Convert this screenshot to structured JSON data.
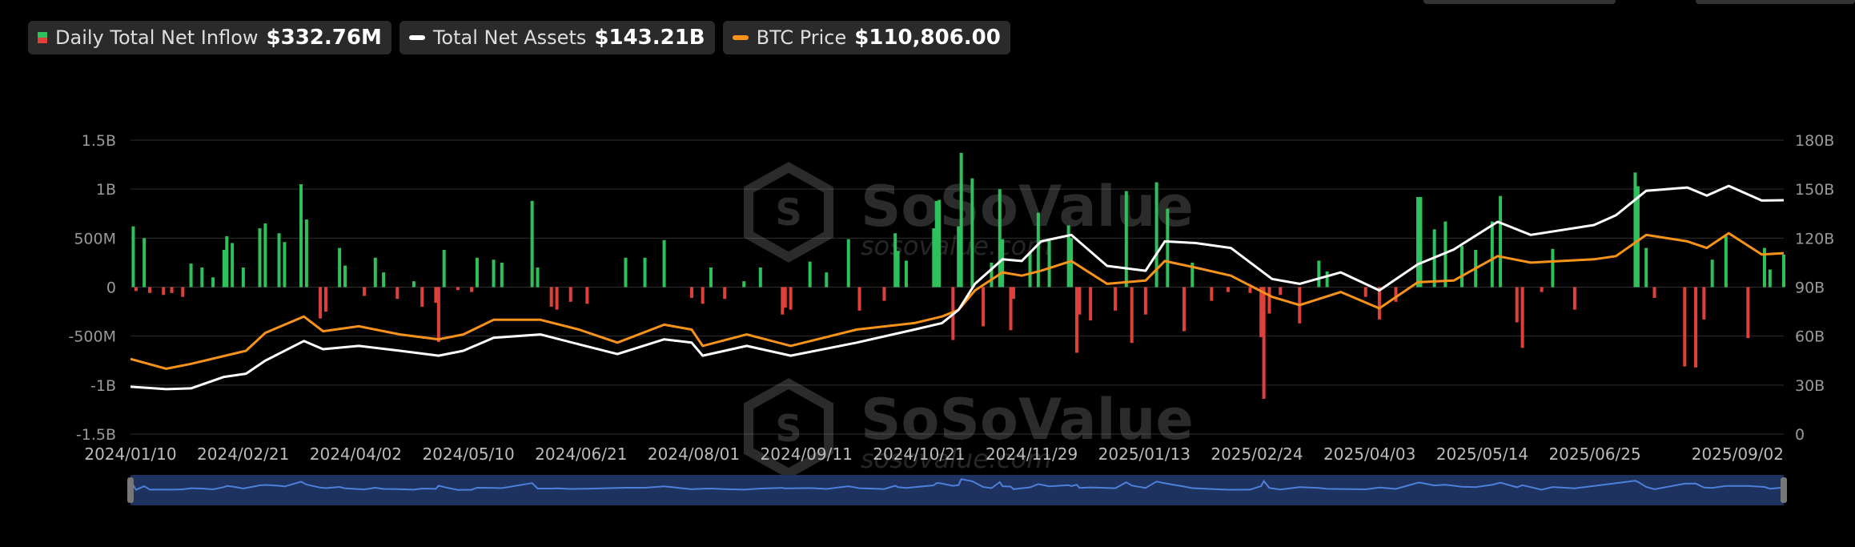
{
  "legend": {
    "inflow": {
      "label": "Daily Total Net Inflow",
      "value": "$332.76M",
      "colors": [
        "#2ec05a",
        "#e0403a"
      ]
    },
    "assets": {
      "label": "Total Net Assets",
      "value": "$143.21B",
      "color": "#ffffff"
    },
    "btc": {
      "label": "BTC Price",
      "value": "$110,806.00",
      "color": "#f7931a"
    }
  },
  "watermark": {
    "brand": "SoSoValue",
    "url": "sosovalue.com"
  },
  "chart_data": {
    "type": "bar+line",
    "x_ticks": [
      "2024/01/10",
      "2024/02/21",
      "2024/04/02",
      "2024/05/10",
      "2024/06/21",
      "2024/08/01",
      "2024/09/11",
      "2024/10/21",
      "2024/11/29",
      "2025/01/13",
      "2025/02/24",
      "2025/04/03",
      "2025/05/14",
      "2025/06/25",
      "2025/09/02"
    ],
    "x_range": [
      "2024-01-10",
      "2025-09-02"
    ],
    "left_axis": {
      "ticks": [
        "1.5B",
        "1B",
        "500M",
        "0",
        "-500M",
        "-1B",
        "-1.5B"
      ],
      "range": [
        -1500,
        1500
      ],
      "unit": "USD millions"
    },
    "right_axis": {
      "ticks": [
        "180B",
        "150B",
        "120B",
        "90B",
        "60B",
        "30B",
        "0"
      ],
      "range": [
        0,
        180
      ],
      "unit": "USD billions"
    },
    "grid": true,
    "series": [
      {
        "name": "Daily Total Net Inflow",
        "type": "bar",
        "axis": "left",
        "unit": "USD millions",
        "points": [
          [
            "2024-01-11",
            620
          ],
          [
            "2024-01-12",
            -40
          ],
          [
            "2024-01-15",
            500
          ],
          [
            "2024-01-17",
            -60
          ],
          [
            "2024-01-22",
            -80
          ],
          [
            "2024-01-25",
            -60
          ],
          [
            "2024-01-29",
            -100
          ],
          [
            "2024-02-01",
            240
          ],
          [
            "2024-02-05",
            200
          ],
          [
            "2024-02-09",
            100
          ],
          [
            "2024-02-13",
            380
          ],
          [
            "2024-02-14",
            520
          ],
          [
            "2024-02-16",
            450
          ],
          [
            "2024-02-20",
            200
          ],
          [
            "2024-02-26",
            600
          ],
          [
            "2024-02-28",
            650
          ],
          [
            "2024-03-04",
            550
          ],
          [
            "2024-03-06",
            460
          ],
          [
            "2024-03-12",
            1050
          ],
          [
            "2024-03-14",
            690
          ],
          [
            "2024-03-19",
            -320
          ],
          [
            "2024-03-21",
            -250
          ],
          [
            "2024-03-26",
            400
          ],
          [
            "2024-03-28",
            220
          ],
          [
            "2024-04-04",
            -90
          ],
          [
            "2024-04-08",
            300
          ],
          [
            "2024-04-11",
            150
          ],
          [
            "2024-04-16",
            -120
          ],
          [
            "2024-04-22",
            60
          ],
          [
            "2024-04-25",
            -200
          ],
          [
            "2024-04-30",
            -160
          ],
          [
            "2024-05-01",
            -560
          ],
          [
            "2024-05-03",
            380
          ],
          [
            "2024-05-08",
            -30
          ],
          [
            "2024-05-13",
            -50
          ],
          [
            "2024-05-15",
            300
          ],
          [
            "2024-05-21",
            280
          ],
          [
            "2024-05-24",
            250
          ],
          [
            "2024-06-04",
            880
          ],
          [
            "2024-06-06",
            200
          ],
          [
            "2024-06-11",
            -200
          ],
          [
            "2024-06-13",
            -230
          ],
          [
            "2024-06-18",
            -150
          ],
          [
            "2024-06-24",
            -170
          ],
          [
            "2024-07-08",
            300
          ],
          [
            "2024-07-15",
            300
          ],
          [
            "2024-07-22",
            480
          ],
          [
            "2024-08-01",
            -110
          ],
          [
            "2024-08-05",
            -170
          ],
          [
            "2024-08-08",
            200
          ],
          [
            "2024-08-13",
            -120
          ],
          [
            "2024-08-20",
            60
          ],
          [
            "2024-08-26",
            200
          ],
          [
            "2024-09-03",
            -280
          ],
          [
            "2024-09-04",
            -210
          ],
          [
            "2024-09-06",
            -230
          ],
          [
            "2024-09-13",
            260
          ],
          [
            "2024-09-19",
            150
          ],
          [
            "2024-09-27",
            490
          ],
          [
            "2024-10-01",
            -240
          ],
          [
            "2024-10-10",
            -140
          ],
          [
            "2024-10-14",
            550
          ],
          [
            "2024-10-15",
            370
          ],
          [
            "2024-10-18",
            270
          ],
          [
            "2024-10-28",
            600
          ],
          [
            "2024-10-29",
            880
          ],
          [
            "2024-10-30",
            890
          ],
          [
            "2024-11-04",
            -540
          ],
          [
            "2024-11-06",
            620
          ],
          [
            "2024-11-07",
            1370
          ],
          [
            "2024-11-11",
            1110
          ],
          [
            "2024-11-15",
            -400
          ],
          [
            "2024-11-18",
            250
          ],
          [
            "2024-11-21",
            1000
          ],
          [
            "2024-11-22",
            490
          ],
          [
            "2024-11-25",
            -440
          ],
          [
            "2024-11-26",
            -120
          ],
          [
            "2024-12-02",
            350
          ],
          [
            "2024-12-05",
            760
          ],
          [
            "2024-12-09",
            480
          ],
          [
            "2024-12-16",
            630
          ],
          [
            "2024-12-17",
            500
          ],
          [
            "2024-12-19",
            -670
          ],
          [
            "2024-12-20",
            -280
          ],
          [
            "2024-12-24",
            -340
          ],
          [
            "2025-01-02",
            -240
          ],
          [
            "2025-01-06",
            980
          ],
          [
            "2025-01-08",
            -570
          ],
          [
            "2025-01-13",
            -280
          ],
          [
            "2025-01-17",
            1070
          ],
          [
            "2025-01-21",
            800
          ],
          [
            "2025-01-27",
            -450
          ],
          [
            "2025-01-30",
            250
          ],
          [
            "2025-02-06",
            -140
          ],
          [
            "2025-02-12",
            -50
          ],
          [
            "2025-02-20",
            -60
          ],
          [
            "2025-02-24",
            -510
          ],
          [
            "2025-02-25",
            -1140
          ],
          [
            "2025-02-27",
            -270
          ],
          [
            "2025-03-03",
            -80
          ],
          [
            "2025-03-10",
            -370
          ],
          [
            "2025-03-17",
            270
          ],
          [
            "2025-03-20",
            160
          ],
          [
            "2025-04-03",
            -100
          ],
          [
            "2025-04-08",
            -330
          ],
          [
            "2025-04-14",
            -150
          ],
          [
            "2025-04-22",
            920
          ],
          [
            "2025-04-23",
            920
          ],
          [
            "2025-04-28",
            590
          ],
          [
            "2025-05-02",
            670
          ],
          [
            "2025-05-08",
            420
          ],
          [
            "2025-05-13",
            380
          ],
          [
            "2025-05-19",
            670
          ],
          [
            "2025-05-22",
            930
          ],
          [
            "2025-05-28",
            -360
          ],
          [
            "2025-05-30",
            -620
          ],
          [
            "2025-06-06",
            -50
          ],
          [
            "2025-06-10",
            390
          ],
          [
            "2025-06-18",
            -230
          ],
          [
            "2025-07-10",
            1170
          ],
          [
            "2025-07-11",
            1030
          ],
          [
            "2025-07-14",
            400
          ],
          [
            "2025-07-17",
            -110
          ],
          [
            "2025-07-28",
            -810
          ],
          [
            "2025-08-01",
            -820
          ],
          [
            "2025-08-04",
            -330
          ],
          [
            "2025-08-07",
            280
          ],
          [
            "2025-08-12",
            520
          ],
          [
            "2025-08-20",
            -520
          ],
          [
            "2025-08-26",
            400
          ],
          [
            "2025-08-28",
            180
          ],
          [
            "2025-09-02",
            333
          ]
        ]
      },
      {
        "name": "Total Net Assets",
        "type": "line",
        "axis": "right",
        "unit": "USD billions",
        "points": [
          [
            "2024-01-10",
            29
          ],
          [
            "2024-01-23",
            27.5
          ],
          [
            "2024-02-01",
            28
          ],
          [
            "2024-02-13",
            35
          ],
          [
            "2024-02-21",
            37
          ],
          [
            "2024-02-28",
            45
          ],
          [
            "2024-03-13",
            57
          ],
          [
            "2024-03-20",
            52
          ],
          [
            "2024-04-02",
            54
          ],
          [
            "2024-04-17",
            51
          ],
          [
            "2024-05-01",
            48
          ],
          [
            "2024-05-10",
            51
          ],
          [
            "2024-05-21",
            59
          ],
          [
            "2024-06-07",
            61
          ],
          [
            "2024-06-21",
            55
          ],
          [
            "2024-07-05",
            49
          ],
          [
            "2024-07-22",
            58
          ],
          [
            "2024-08-01",
            56
          ],
          [
            "2024-08-05",
            48
          ],
          [
            "2024-08-21",
            54
          ],
          [
            "2024-09-06",
            48
          ],
          [
            "2024-09-30",
            56
          ],
          [
            "2024-10-21",
            64
          ],
          [
            "2024-10-31",
            68
          ],
          [
            "2024-11-06",
            76
          ],
          [
            "2024-11-12",
            92
          ],
          [
            "2024-11-22",
            107
          ],
          [
            "2024-11-29",
            106
          ],
          [
            "2024-12-06",
            118
          ],
          [
            "2024-12-17",
            122
          ],
          [
            "2024-12-30",
            103
          ],
          [
            "2025-01-13",
            100
          ],
          [
            "2025-01-20",
            118
          ],
          [
            "2025-01-31",
            117
          ],
          [
            "2025-02-13",
            114
          ],
          [
            "2025-02-28",
            95
          ],
          [
            "2025-03-10",
            92
          ],
          [
            "2025-03-25",
            99
          ],
          [
            "2025-04-08",
            88
          ],
          [
            "2025-04-22",
            104
          ],
          [
            "2025-05-05",
            113
          ],
          [
            "2025-05-21",
            130
          ],
          [
            "2025-06-02",
            122
          ],
          [
            "2025-06-25",
            128
          ],
          [
            "2025-07-03",
            134
          ],
          [
            "2025-07-14",
            149
          ],
          [
            "2025-07-29",
            151
          ],
          [
            "2025-08-05",
            146
          ],
          [
            "2025-08-13",
            152
          ],
          [
            "2025-08-25",
            143
          ],
          [
            "2025-09-02",
            143.21
          ]
        ]
      },
      {
        "name": "BTC Price",
        "type": "line",
        "axis": "right",
        "unit": "USD thousands",
        "points": [
          [
            "2024-01-10",
            46
          ],
          [
            "2024-01-23",
            40
          ],
          [
            "2024-02-01",
            43
          ],
          [
            "2024-02-21",
            51
          ],
          [
            "2024-02-28",
            62
          ],
          [
            "2024-03-13",
            72
          ],
          [
            "2024-03-20",
            63
          ],
          [
            "2024-04-02",
            66
          ],
          [
            "2024-04-17",
            61
          ],
          [
            "2024-05-01",
            58
          ],
          [
            "2024-05-10",
            61
          ],
          [
            "2024-05-21",
            70
          ],
          [
            "2024-06-07",
            70
          ],
          [
            "2024-06-21",
            64
          ],
          [
            "2024-07-05",
            56
          ],
          [
            "2024-07-22",
            67
          ],
          [
            "2024-08-01",
            64
          ],
          [
            "2024-08-05",
            54
          ],
          [
            "2024-08-21",
            61
          ],
          [
            "2024-09-06",
            54
          ],
          [
            "2024-09-30",
            64
          ],
          [
            "2024-10-21",
            68
          ],
          [
            "2024-10-31",
            72
          ],
          [
            "2024-11-06",
            76
          ],
          [
            "2024-11-12",
            88
          ],
          [
            "2024-11-22",
            99
          ],
          [
            "2024-11-29",
            97
          ],
          [
            "2024-12-06",
            100
          ],
          [
            "2024-12-17",
            106
          ],
          [
            "2024-12-30",
            92
          ],
          [
            "2025-01-13",
            94
          ],
          [
            "2025-01-20",
            106
          ],
          [
            "2025-01-31",
            102
          ],
          [
            "2025-02-13",
            97
          ],
          [
            "2025-02-28",
            84
          ],
          [
            "2025-03-10",
            79
          ],
          [
            "2025-03-25",
            87
          ],
          [
            "2025-04-08",
            77
          ],
          [
            "2025-04-22",
            93
          ],
          [
            "2025-05-05",
            94
          ],
          [
            "2025-05-21",
            109
          ],
          [
            "2025-06-02",
            105
          ],
          [
            "2025-06-25",
            107
          ],
          [
            "2025-07-03",
            109
          ],
          [
            "2025-07-14",
            122
          ],
          [
            "2025-07-29",
            118
          ],
          [
            "2025-08-05",
            114
          ],
          [
            "2025-08-13",
            123
          ],
          [
            "2025-08-25",
            110
          ],
          [
            "2025-09-02",
            110.8
          ]
        ]
      }
    ]
  }
}
